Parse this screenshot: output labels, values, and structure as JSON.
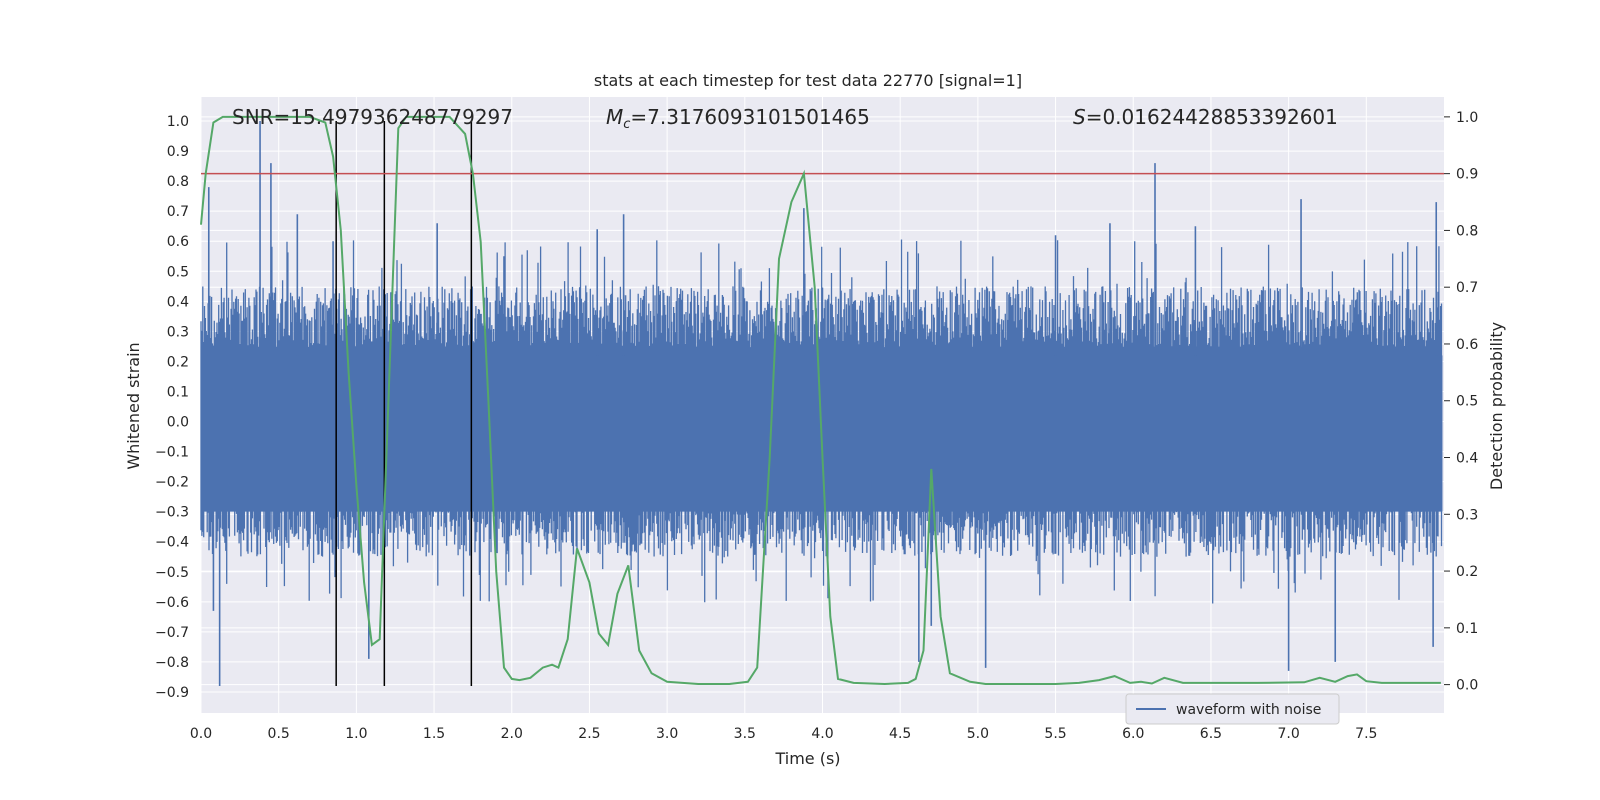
{
  "chart_data": {
    "type": "line",
    "title": "stats at each timestep for test data 22770 [signal=1]",
    "xlabel": "Time (s)",
    "ylabel": "Whitened strain",
    "ylabel_right": "Detection probability",
    "xlim": [
      0.0,
      8.0
    ],
    "ylim": [
      -0.97,
      1.08
    ],
    "ylim_right": [
      -0.05,
      1.035
    ],
    "x_ticks": [
      0.0,
      0.5,
      1.0,
      1.5,
      2.0,
      2.5,
      3.0,
      3.5,
      4.0,
      4.5,
      5.0,
      5.5,
      6.0,
      6.5,
      7.0,
      7.5
    ],
    "x_tick_labels": [
      "0.0",
      "0.5",
      "1.0",
      "1.5",
      "2.0",
      "2.5",
      "3.0",
      "3.5",
      "4.0",
      "4.5",
      "5.0",
      "5.5",
      "6.0",
      "6.5",
      "7.0",
      "7.5"
    ],
    "y_ticks": [
      -0.9,
      -0.8,
      -0.7,
      -0.6,
      -0.5,
      -0.4,
      -0.3,
      -0.2,
      -0.1,
      0.0,
      0.1,
      0.2,
      0.3,
      0.4,
      0.5,
      0.6,
      0.7,
      0.8,
      0.9,
      1.0
    ],
    "y_tick_labels": [
      "−0.9",
      "−0.8",
      "−0.7",
      "−0.6",
      "−0.5",
      "−0.4",
      "−0.3",
      "−0.2",
      "−0.1",
      "0.0",
      "0.1",
      "0.2",
      "0.3",
      "0.4",
      "0.5",
      "0.6",
      "0.7",
      "0.8",
      "0.9",
      "1.0"
    ],
    "y_ticks_right": [
      0.0,
      0.1,
      0.2,
      0.3,
      0.4,
      0.5,
      0.6,
      0.7,
      0.8,
      0.9,
      1.0
    ],
    "y_tick_labels_right": [
      "0.0",
      "0.1",
      "0.2",
      "0.3",
      "0.4",
      "0.5",
      "0.6",
      "0.7",
      "0.8",
      "0.9",
      "1.0"
    ],
    "grid": true,
    "legend": {
      "entries": [
        "waveform with noise"
      ],
      "placement": "lower-right"
    },
    "annotations": {
      "snr": "SNR=15.497936248779297",
      "mc_symbol": "M",
      "mc_sub": "c",
      "mc_value": "=7.3176093101501465",
      "s_symbol": "S",
      "s_value": "=0.01624428853392601"
    },
    "series": [
      {
        "name": "waveform with noise",
        "axis": "left",
        "color": "#4c72b0",
        "kind": "noisy-waveform",
        "typical_envelope": [
          -0.45,
          0.45
        ],
        "spikes": [
          {
            "x": 0.05,
            "y": 0.78
          },
          {
            "x": 0.08,
            "y": -0.63
          },
          {
            "x": 0.12,
            "y": -0.88
          },
          {
            "x": 0.38,
            "y": 1.0
          },
          {
            "x": 0.45,
            "y": 0.86
          },
          {
            "x": 0.62,
            "y": 0.69
          },
          {
            "x": 0.85,
            "y": 0.6
          },
          {
            "x": 1.08,
            "y": -0.79
          },
          {
            "x": 1.52,
            "y": 0.66
          },
          {
            "x": 1.95,
            "y": 0.55
          },
          {
            "x": 2.55,
            "y": 0.64
          },
          {
            "x": 2.72,
            "y": 0.69
          },
          {
            "x": 3.88,
            "y": 0.71
          },
          {
            "x": 4.62,
            "y": -0.8
          },
          {
            "x": 4.7,
            "y": -0.68
          },
          {
            "x": 5.05,
            "y": -0.82
          },
          {
            "x": 5.5,
            "y": 0.62
          },
          {
            "x": 5.85,
            "y": 0.66
          },
          {
            "x": 6.14,
            "y": 0.86
          },
          {
            "x": 6.4,
            "y": 0.65
          },
          {
            "x": 7.0,
            "y": -0.83
          },
          {
            "x": 7.08,
            "y": 0.74
          },
          {
            "x": 7.3,
            "y": -0.8
          },
          {
            "x": 7.95,
            "y": 0.73
          },
          {
            "x": 7.93,
            "y": -0.75
          }
        ]
      },
      {
        "name": "",
        "axis": "right",
        "color": "#55a868",
        "x": [
          0.0,
          0.03,
          0.08,
          0.14,
          0.3,
          0.5,
          0.7,
          0.8,
          0.85,
          0.9,
          0.95,
          1.0,
          1.05,
          1.1,
          1.15,
          1.2,
          1.27,
          1.32,
          1.4,
          1.5,
          1.6,
          1.7,
          1.75,
          1.8,
          1.85,
          1.9,
          1.95,
          2.0,
          2.05,
          2.12,
          2.2,
          2.26,
          2.3,
          2.36,
          2.42,
          2.5,
          2.56,
          2.62,
          2.68,
          2.75,
          2.82,
          2.9,
          3.0,
          3.2,
          3.4,
          3.52,
          3.58,
          3.66,
          3.72,
          3.8,
          3.88,
          3.95,
          4.0,
          4.05,
          4.1,
          4.2,
          4.4,
          4.55,
          4.6,
          4.65,
          4.7,
          4.76,
          4.82,
          4.95,
          5.05,
          5.5,
          5.65,
          5.78,
          5.88,
          5.98,
          6.05,
          6.12,
          6.2,
          6.32,
          6.5,
          6.8,
          7.1,
          7.2,
          7.3,
          7.38,
          7.44,
          7.5,
          7.6,
          7.8,
          7.98
        ],
        "values": [
          0.81,
          0.9,
          0.99,
          1.0,
          1.0,
          1.0,
          1.0,
          0.99,
          0.93,
          0.8,
          0.55,
          0.35,
          0.18,
          0.07,
          0.08,
          0.45,
          0.98,
          1.0,
          1.0,
          1.0,
          1.0,
          0.97,
          0.9,
          0.78,
          0.5,
          0.2,
          0.03,
          0.01,
          0.008,
          0.012,
          0.03,
          0.035,
          0.03,
          0.08,
          0.24,
          0.18,
          0.09,
          0.07,
          0.16,
          0.21,
          0.06,
          0.02,
          0.005,
          0.001,
          0.001,
          0.005,
          0.03,
          0.4,
          0.75,
          0.85,
          0.9,
          0.7,
          0.4,
          0.12,
          0.01,
          0.003,
          0.001,
          0.003,
          0.01,
          0.06,
          0.38,
          0.12,
          0.02,
          0.005,
          0.001,
          0.001,
          0.003,
          0.008,
          0.015,
          0.003,
          0.005,
          0.002,
          0.012,
          0.003,
          0.003,
          0.003,
          0.004,
          0.012,
          0.005,
          0.015,
          0.018,
          0.006,
          0.003,
          0.003,
          0.003
        ]
      }
    ],
    "vertical_lines": {
      "color": "#000000",
      "x": [
        0.87,
        1.18,
        1.74
      ],
      "y_range": [
        -0.88,
        1.0
      ]
    },
    "threshold_line": {
      "color": "#c44e52",
      "axis": "right",
      "value": 0.9
    },
    "colors": {
      "plot_background": "#eaeaf2",
      "grid": "#ffffff",
      "waveform": "#4c72b0",
      "probability": "#55a868",
      "threshold": "#c44e52"
    }
  }
}
